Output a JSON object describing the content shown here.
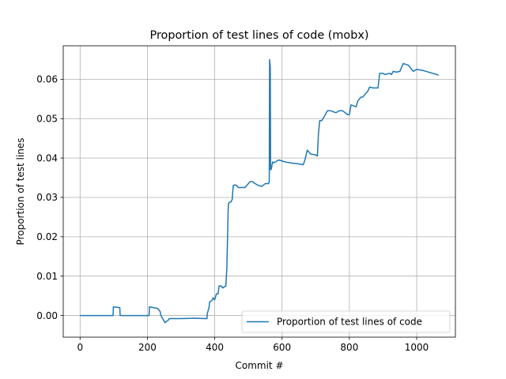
{
  "chart_data": {
    "type": "line",
    "title": "Proportion of test lines of code (mobx)",
    "xlabel": "Commit #",
    "ylabel": "Proportion of test lines",
    "xlim": [
      -50,
      1115
    ],
    "ylim": [
      -0.0055,
      0.0685
    ],
    "xticks": [
      0,
      200,
      400,
      600,
      800,
      1000
    ],
    "xtick_labels": [
      "0",
      "200",
      "400",
      "600",
      "800",
      "1000"
    ],
    "yticks": [
      0.0,
      0.01,
      0.02,
      0.03,
      0.04,
      0.05,
      0.06
    ],
    "ytick_labels": [
      "0.00",
      "0.01",
      "0.02",
      "0.03",
      "0.04",
      "0.05",
      "0.06"
    ],
    "grid": true,
    "legend_position": "lower right",
    "series": [
      {
        "name": "Proportion of test lines of code",
        "color": "#1f77b4",
        "x": [
          0,
          98,
          99,
          118,
          119,
          205,
          206,
          230,
          238,
          240,
          250,
          252,
          262,
          265,
          300,
          340,
          377,
          378,
          383,
          385,
          392,
          395,
          400,
          405,
          410,
          413,
          420,
          423,
          433,
          436,
          440,
          441,
          445,
          448,
          452,
          455,
          460,
          465,
          470,
          478,
          490,
          500,
          505,
          512,
          520,
          530,
          540,
          550,
          560,
          562,
          563,
          565,
          566,
          568,
          572,
          575,
          580,
          590,
          610,
          630,
          650,
          663,
          668,
          675,
          685,
          700,
          705,
          708,
          712,
          718,
          725,
          735,
          745,
          760,
          770,
          780,
          795,
          800,
          805,
          820,
          825,
          835,
          840,
          855,
          860,
          870,
          885,
          890,
          900,
          905,
          920,
          925,
          930,
          940,
          950,
          960,
          975,
          985,
          990,
          1000,
          1020,
          1040,
          1060,
          1065
        ],
        "y": [
          0.0,
          0.0,
          0.0022,
          0.002,
          0.0,
          0.0,
          0.0022,
          0.0018,
          0.001,
          0.0,
          -0.0015,
          -0.0018,
          -0.0012,
          -0.0008,
          -0.0008,
          -0.0007,
          -0.0008,
          0.0005,
          0.002,
          0.0035,
          0.0038,
          0.0045,
          0.004,
          0.0055,
          0.0055,
          0.0075,
          0.0075,
          0.007,
          0.0075,
          0.012,
          0.027,
          0.0285,
          0.0288,
          0.0288,
          0.0295,
          0.033,
          0.0332,
          0.033,
          0.0325,
          0.0325,
          0.0325,
          0.0335,
          0.034,
          0.034,
          0.0335,
          0.033,
          0.0328,
          0.0335,
          0.0335,
          0.034,
          0.065,
          0.063,
          0.037,
          0.0372,
          0.039,
          0.0388,
          0.039,
          0.0395,
          0.039,
          0.0387,
          0.0385,
          0.0383,
          0.0395,
          0.042,
          0.041,
          0.0408,
          0.0405,
          0.046,
          0.0495,
          0.0495,
          0.0505,
          0.052,
          0.052,
          0.0515,
          0.052,
          0.052,
          0.051,
          0.051,
          0.0535,
          0.053,
          0.0545,
          0.0555,
          0.0555,
          0.057,
          0.058,
          0.0578,
          0.0578,
          0.0615,
          0.0615,
          0.0612,
          0.0615,
          0.0612,
          0.062,
          0.0618,
          0.062,
          0.064,
          0.0636,
          0.0625,
          0.062,
          0.0625,
          0.0622,
          0.0617,
          0.0612,
          0.061
        ]
      }
    ]
  }
}
